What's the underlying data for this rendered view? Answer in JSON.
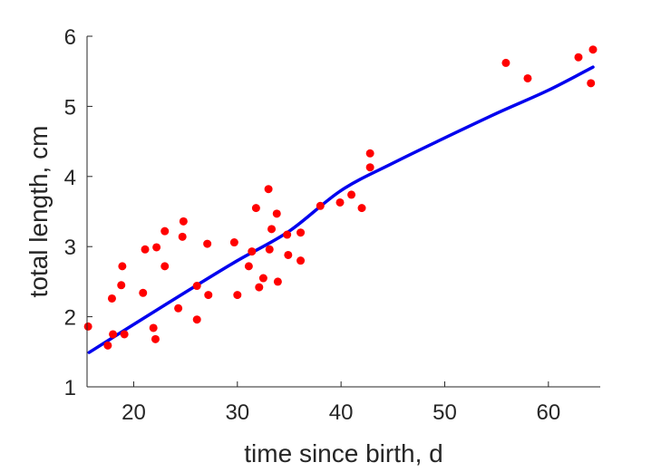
{
  "chart_data": {
    "type": "scatter",
    "title": "",
    "xlabel": "time since birth, d",
    "ylabel": "total length, cm",
    "xlim": [
      15.5,
      65
    ],
    "ylim": [
      1,
      6
    ],
    "xticks": [
      20,
      30,
      40,
      50,
      60
    ],
    "yticks": [
      1,
      2,
      3,
      4,
      5,
      6
    ],
    "grid": false,
    "legend": "none",
    "series": [
      {
        "type": "scatter",
        "color": "#ff0000",
        "points": [
          [
            15.6,
            1.86
          ],
          [
            17.5,
            1.59
          ],
          [
            17.9,
            2.26
          ],
          [
            18.0,
            1.75
          ],
          [
            18.8,
            2.45
          ],
          [
            18.9,
            2.72
          ],
          [
            19.1,
            1.75
          ],
          [
            20.9,
            2.34
          ],
          [
            21.1,
            2.96
          ],
          [
            21.9,
            1.84
          ],
          [
            22.1,
            1.68
          ],
          [
            22.2,
            2.99
          ],
          [
            23.0,
            3.22
          ],
          [
            23.0,
            2.72
          ],
          [
            24.3,
            2.12
          ],
          [
            24.7,
            3.14
          ],
          [
            24.8,
            3.36
          ],
          [
            26.1,
            2.44
          ],
          [
            26.1,
            1.96
          ],
          [
            27.1,
            3.04
          ],
          [
            27.2,
            2.31
          ],
          [
            29.7,
            3.06
          ],
          [
            30.0,
            2.31
          ],
          [
            31.1,
            2.72
          ],
          [
            31.4,
            2.93
          ],
          [
            31.8,
            3.55
          ],
          [
            32.1,
            2.42
          ],
          [
            32.5,
            2.55
          ],
          [
            33.0,
            3.82
          ],
          [
            33.1,
            2.96
          ],
          [
            33.3,
            3.25
          ],
          [
            33.8,
            3.47
          ],
          [
            33.9,
            2.5
          ],
          [
            34.8,
            3.17
          ],
          [
            34.9,
            2.88
          ],
          [
            36.1,
            3.2
          ],
          [
            36.1,
            2.8
          ],
          [
            38.0,
            3.58
          ],
          [
            39.9,
            3.63
          ],
          [
            41.0,
            3.74
          ],
          [
            42.0,
            3.55
          ],
          [
            42.8,
            4.13
          ],
          [
            42.8,
            4.33
          ],
          [
            55.9,
            5.62
          ],
          [
            58.0,
            5.4
          ],
          [
            62.9,
            5.7
          ],
          [
            64.1,
            5.33
          ],
          [
            64.3,
            5.81
          ]
        ]
      },
      {
        "type": "line",
        "color": "#0000ee",
        "points": [
          [
            15.7,
            1.49
          ],
          [
            20,
            1.89
          ],
          [
            25,
            2.35
          ],
          [
            30,
            2.8
          ],
          [
            35,
            3.22
          ],
          [
            40,
            3.8
          ],
          [
            45,
            4.19
          ],
          [
            50,
            4.55
          ],
          [
            55,
            4.9
          ],
          [
            60,
            5.23
          ],
          [
            64.3,
            5.56
          ]
        ]
      }
    ]
  }
}
